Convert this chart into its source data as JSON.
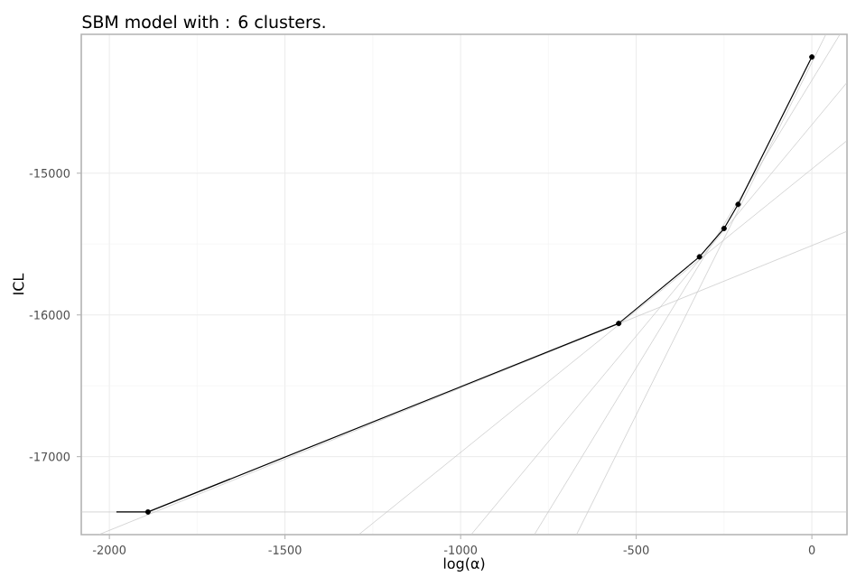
{
  "chart_data": {
    "type": "line",
    "title": "SBM model with : 6 clusters.",
    "xlabel": "log(α)",
    "ylabel": "ICL",
    "xlim": [
      -2080,
      100
    ],
    "ylim": [
      -17550,
      -14020
    ],
    "xticks": [
      -2000,
      -1500,
      -1000,
      -500,
      0
    ],
    "yticks": [
      -17000,
      -16000,
      -15000
    ],
    "grid": true,
    "series": [
      {
        "color": "#cccccc",
        "marker": "none",
        "x": [
          -2080,
          100
        ],
        "values": [
          -17390,
          -17390
        ]
      },
      {
        "color": "#cccccc",
        "marker": "none",
        "x": [
          -2030,
          100
        ],
        "values": [
          -17550,
          -15410
        ]
      },
      {
        "color": "#cccccc",
        "marker": "none",
        "x": [
          -1290,
          100
        ],
        "values": [
          -17550,
          -14770
        ]
      },
      {
        "color": "#cccccc",
        "marker": "none",
        "x": [
          -970,
          100
        ],
        "values": [
          -17550,
          -14360
        ]
      },
      {
        "color": "#cccccc",
        "marker": "none",
        "x": [
          -790,
          80
        ],
        "values": [
          -17550,
          -14020
        ]
      },
      {
        "color": "#cccccc",
        "marker": "none",
        "x": [
          -670,
          40
        ],
        "values": [
          -17550,
          -14020
        ]
      },
      {
        "color": "#000000",
        "marker": "none",
        "x": [
          -1980,
          -1890,
          -550,
          -320,
          -250,
          -210,
          0
        ],
        "values": [
          -17390,
          -17390,
          -16060,
          -15590,
          -15390,
          -15220,
          -14180
        ]
      },
      {
        "type": "scatter",
        "color": "#000000",
        "marker": "circle",
        "x": [
          -1890,
          -550,
          -320,
          -250,
          -210,
          0
        ],
        "values": [
          -17390,
          -16060,
          -15590,
          -15390,
          -15220,
          -14180
        ]
      }
    ]
  }
}
